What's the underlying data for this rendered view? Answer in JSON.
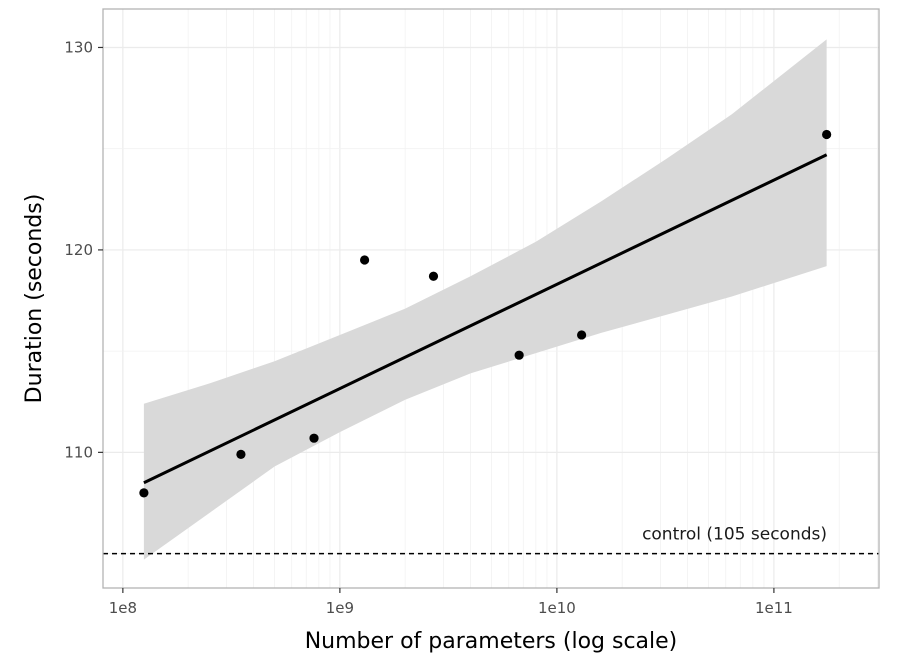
{
  "chart_data": {
    "type": "scatter",
    "xlabel": "Number of parameters (log scale)",
    "ylabel": "Duration (seconds)",
    "x_scale": "log",
    "xlim": [
      81000000,
      305000000000
    ],
    "ylim": [
      103.3,
      131.9
    ],
    "x_ticks": [
      {
        "value": 100000000,
        "label": "1e8"
      },
      {
        "value": 1000000000,
        "label": "1e9"
      },
      {
        "value": 10000000000,
        "label": "1e10"
      },
      {
        "value": 100000000000,
        "label": "1e11"
      }
    ],
    "y_ticks": [
      {
        "value": 110,
        "label": "110"
      },
      {
        "value": 120,
        "label": "120"
      },
      {
        "value": 130,
        "label": "130"
      }
    ],
    "points": [
      {
        "x": 125000000,
        "y": 108.0
      },
      {
        "x": 350000000,
        "y": 109.9
      },
      {
        "x": 760000000,
        "y": 110.7
      },
      {
        "x": 1300000000,
        "y": 119.5
      },
      {
        "x": 2700000000,
        "y": 118.7
      },
      {
        "x": 6700000000,
        "y": 114.8
      },
      {
        "x": 13000000000,
        "y": 115.8
      },
      {
        "x": 175000000000,
        "y": 125.7
      }
    ],
    "fit_line": [
      {
        "x": 125000000,
        "y": 108.5
      },
      {
        "x": 175000000000,
        "y": 124.7
      }
    ],
    "confidence_band": {
      "x": [
        125000000,
        250000000,
        500000000,
        1000000000,
        2000000000,
        4000000000,
        8000000000,
        16000000000,
        32000000000,
        64000000000,
        175000000000
      ],
      "lower": [
        104.7,
        107.0,
        109.3,
        111.0,
        112.6,
        113.9,
        114.9,
        115.9,
        116.8,
        117.7,
        119.2
      ],
      "upper": [
        112.4,
        113.4,
        114.5,
        115.8,
        117.1,
        118.7,
        120.4,
        122.4,
        124.5,
        126.7,
        130.4
      ]
    },
    "reference_line": {
      "y": 105,
      "label": "control (105 seconds)",
      "style": "dashed"
    },
    "grid": true,
    "colors": {
      "points": "#000000",
      "fit_line": "#000000",
      "band": "#d9d9d9",
      "grid": "#ebebeb",
      "panel_border": "#b3b3b3"
    }
  }
}
